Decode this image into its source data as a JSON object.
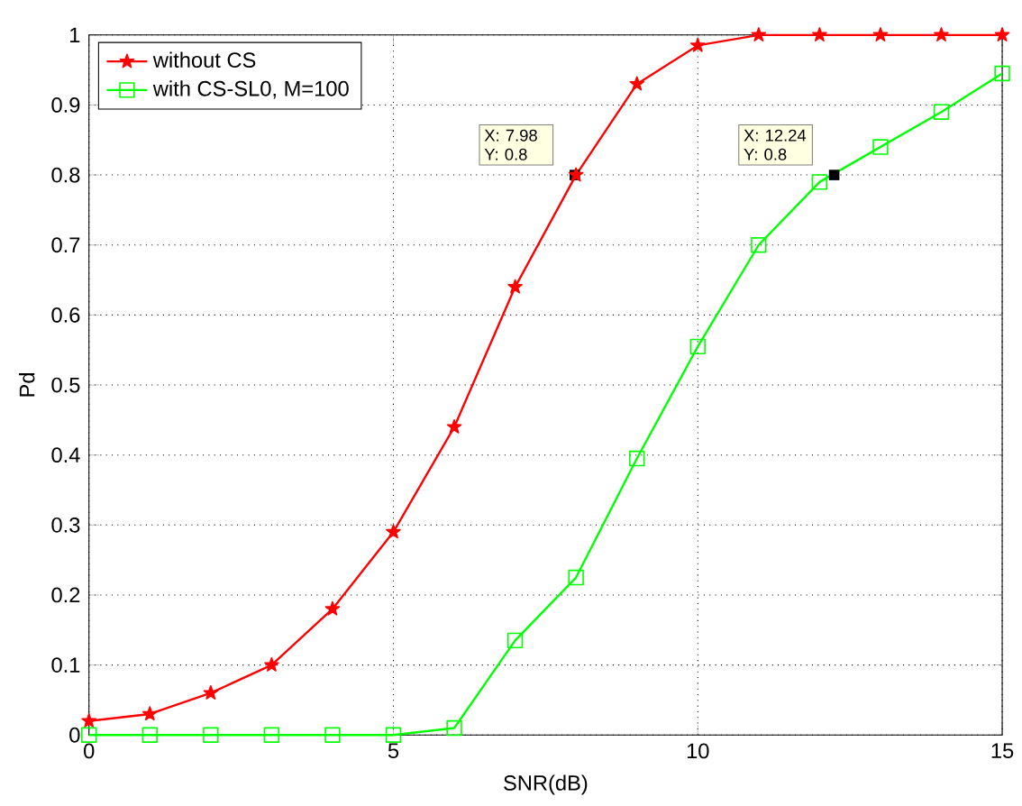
{
  "chart_data": {
    "type": "line",
    "xlabel": "SNR(dB)",
    "ylabel": "Pd",
    "x": [
      0,
      1,
      2,
      3,
      4,
      5,
      6,
      7,
      8,
      9,
      10,
      11,
      12,
      13,
      14,
      15
    ],
    "series": [
      {
        "name": "without CS",
        "color": "#ff0000",
        "marker": "star",
        "values": [
          0.02,
          0.03,
          0.06,
          0.1,
          0.18,
          0.29,
          0.44,
          0.64,
          0.8,
          0.93,
          0.985,
          1,
          1,
          1,
          1,
          1
        ]
      },
      {
        "name": "with CS-SL0, M=100",
        "color": "#00ff00",
        "marker": "square",
        "values": [
          0,
          0,
          0,
          0,
          0,
          0,
          0.01,
          0.135,
          0.225,
          0.395,
          0.555,
          0.7,
          0.79,
          0.84,
          0.89,
          0.945
        ]
      }
    ],
    "xlim": [
      0,
      15
    ],
    "ylim": [
      0,
      1
    ],
    "xticks": [
      0,
      5,
      10,
      15
    ],
    "yticks": [
      0,
      0.1,
      0.2,
      0.3,
      0.4,
      0.5,
      0.6,
      0.7,
      0.8,
      0.9,
      1
    ],
    "grid": true,
    "legend": "top left",
    "annotations": [
      {
        "text": "X: 7.98 Y: 0.8",
        "x": 7.98,
        "y": 0.8
      },
      {
        "text": "X: 12.24 Y: 0.8",
        "x": 12.24,
        "y": 0.8
      }
    ]
  }
}
